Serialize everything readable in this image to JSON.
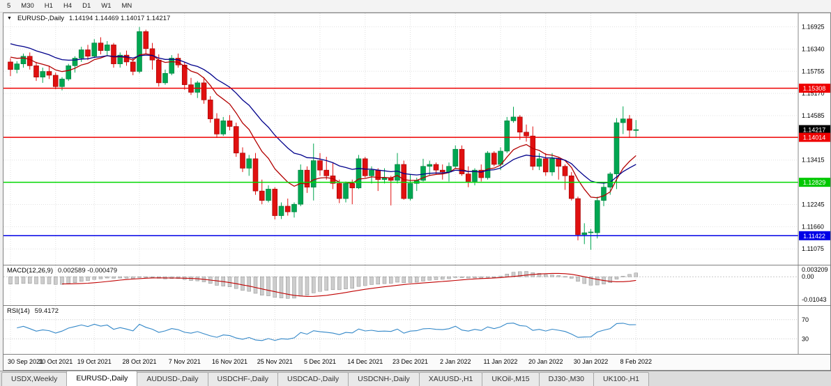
{
  "toolbar": {
    "timeframes": [
      "5",
      "M30",
      "H1",
      "H4",
      "D1",
      "W1",
      "MN"
    ]
  },
  "colors": {
    "bull": "#00a651",
    "bull_edge": "#007a3b",
    "bear": "#e01010",
    "bear_edge": "#9b0000",
    "grid": "#e0e0e0",
    "macd_hist": "#cdcdcd",
    "macd_hist_edge": "#8f8f8f",
    "macd_signal": "#c00000",
    "rsi_line": "#3287c8"
  },
  "chart_data": {
    "type": "candlestick",
    "title": "EURUSD-,Daily",
    "ohlc": "1.14194 1.14469 1.14017 1.14217",
    "x_labels": [
      {
        "text": "30 Sep 2021",
        "i": 0
      },
      {
        "text": "10 Oct 2021",
        "i": 7
      },
      {
        "text": "19 Oct 2021",
        "i": 13
      },
      {
        "text": "28 Oct 2021",
        "i": 20
      },
      {
        "text": "7 Nov 2021",
        "i": 27
      },
      {
        "text": "16 Nov 2021",
        "i": 34
      },
      {
        "text": "25 Nov 2021",
        "i": 41
      },
      {
        "text": "5 Dec 2021",
        "i": 48
      },
      {
        "text": "14 Dec 2021",
        "i": 55
      },
      {
        "text": "23 Dec 2021",
        "i": 62
      },
      {
        "text": "2 Jan 2022",
        "i": 69
      },
      {
        "text": "11 Jan 2022",
        "i": 76
      },
      {
        "text": "20 Jan 2022",
        "i": 83
      },
      {
        "text": "30 Jan 2022",
        "i": 90
      },
      {
        "text": "8 Feb 2022",
        "i": 97
      }
    ],
    "candles": [
      [
        1.16,
        1.161,
        1.1563,
        1.158
      ],
      [
        1.158,
        1.1602,
        1.157,
        1.1595
      ],
      [
        1.1595,
        1.1622,
        1.1585,
        1.1615
      ],
      [
        1.1615,
        1.1625,
        1.158,
        1.159
      ],
      [
        1.159,
        1.16,
        1.155,
        1.156
      ],
      [
        1.156,
        1.1585,
        1.1545,
        1.1575
      ],
      [
        1.1575,
        1.159,
        1.1555,
        1.1565
      ],
      [
        1.1565,
        1.1572,
        1.1528,
        1.1535
      ],
      [
        1.1535,
        1.156,
        1.1525,
        1.1555
      ],
      [
        1.1555,
        1.1595,
        1.155,
        1.159
      ],
      [
        1.159,
        1.1615,
        1.1572,
        1.161
      ],
      [
        1.161,
        1.164,
        1.16,
        1.1632
      ],
      [
        1.1632,
        1.1645,
        1.1605,
        1.1615
      ],
      [
        1.1615,
        1.166,
        1.161,
        1.165
      ],
      [
        1.165,
        1.1665,
        1.162,
        1.163
      ],
      [
        1.163,
        1.1655,
        1.1615,
        1.1645
      ],
      [
        1.1645,
        1.165,
        1.1585,
        1.1595
      ],
      [
        1.1595,
        1.1625,
        1.1585,
        1.1618
      ],
      [
        1.1618,
        1.163,
        1.159,
        1.16
      ],
      [
        1.16,
        1.161,
        1.1565,
        1.1575
      ],
      [
        1.1575,
        1.1692,
        1.157,
        1.168
      ],
      [
        1.168,
        1.1685,
        1.162,
        1.1635
      ],
      [
        1.1635,
        1.165,
        1.158,
        1.1605
      ],
      [
        1.1605,
        1.162,
        1.1535,
        1.1545
      ],
      [
        1.1545,
        1.158,
        1.154,
        1.157
      ],
      [
        1.157,
        1.1618,
        1.1565,
        1.161
      ],
      [
        1.161,
        1.1622,
        1.1585,
        1.1592
      ],
      [
        1.1592,
        1.16,
        1.1527,
        1.154
      ],
      [
        1.154,
        1.1558,
        1.1513,
        1.152
      ],
      [
        1.152,
        1.155,
        1.1505,
        1.1545
      ],
      [
        1.1545,
        1.156,
        1.149,
        1.15
      ],
      [
        1.15,
        1.151,
        1.144,
        1.145
      ],
      [
        1.145,
        1.1465,
        1.14,
        1.141
      ],
      [
        1.141,
        1.1455,
        1.1405,
        1.1445
      ],
      [
        1.1445,
        1.146,
        1.142,
        1.143
      ],
      [
        1.143,
        1.144,
        1.135,
        1.136
      ],
      [
        1.136,
        1.1375,
        1.131,
        1.132
      ],
      [
        1.132,
        1.1355,
        1.13,
        1.1345
      ],
      [
        1.1345,
        1.136,
        1.125,
        1.126
      ],
      [
        1.126,
        1.129,
        1.1225,
        1.1235
      ],
      [
        1.1235,
        1.1275,
        1.123,
        1.1265
      ],
      [
        1.1265,
        1.127,
        1.1185,
        1.1195
      ],
      [
        1.1195,
        1.123,
        1.1186,
        1.122
      ],
      [
        1.122,
        1.124,
        1.1195,
        1.1205
      ],
      [
        1.1205,
        1.123,
        1.119,
        1.1225
      ],
      [
        1.1225,
        1.133,
        1.122,
        1.1315
      ],
      [
        1.1315,
        1.1325,
        1.1255,
        1.127
      ],
      [
        1.127,
        1.1385,
        1.1235,
        1.134
      ],
      [
        1.134,
        1.136,
        1.13,
        1.1315
      ],
      [
        1.1315,
        1.135,
        1.129,
        1.13
      ],
      [
        1.13,
        1.1335,
        1.1265,
        1.128
      ],
      [
        1.128,
        1.129,
        1.1228,
        1.124
      ],
      [
        1.124,
        1.1285,
        1.123,
        1.128
      ],
      [
        1.128,
        1.129,
        1.1225,
        1.1268
      ],
      [
        1.1268,
        1.1355,
        1.1265,
        1.1345
      ],
      [
        1.1345,
        1.135,
        1.1295,
        1.13
      ],
      [
        1.13,
        1.1325,
        1.128,
        1.1315
      ],
      [
        1.1315,
        1.132,
        1.126,
        1.129
      ],
      [
        1.129,
        1.132,
        1.128,
        1.1295
      ],
      [
        1.1295,
        1.13,
        1.1222,
        1.1288
      ],
      [
        1.1288,
        1.136,
        1.128,
        1.133
      ],
      [
        1.133,
        1.134,
        1.1237,
        1.124
      ],
      [
        1.124,
        1.1305,
        1.1235,
        1.128
      ],
      [
        1.128,
        1.1295,
        1.126,
        1.1288
      ],
      [
        1.1288,
        1.1345,
        1.1285,
        1.1325
      ],
      [
        1.1325,
        1.134,
        1.13,
        1.133
      ],
      [
        1.133,
        1.1335,
        1.1305,
        1.1315
      ],
      [
        1.1315,
        1.133,
        1.129,
        1.131
      ],
      [
        1.131,
        1.1335,
        1.1285,
        1.1325
      ],
      [
        1.1325,
        1.138,
        1.132,
        1.137
      ],
      [
        1.137,
        1.138,
        1.13,
        1.1305
      ],
      [
        1.1305,
        1.1325,
        1.127,
        1.1285
      ],
      [
        1.1285,
        1.132,
        1.1275,
        1.1315
      ],
      [
        1.1315,
        1.133,
        1.1285,
        1.1295
      ],
      [
        1.1295,
        1.1365,
        1.129,
        1.136
      ],
      [
        1.136,
        1.1365,
        1.1325,
        1.133
      ],
      [
        1.133,
        1.1375,
        1.1315,
        1.1365
      ],
      [
        1.1365,
        1.1455,
        1.136,
        1.1445
      ],
      [
        1.1445,
        1.1482,
        1.144,
        1.1455
      ],
      [
        1.1455,
        1.146,
        1.1395,
        1.1415
      ],
      [
        1.1415,
        1.1435,
        1.139,
        1.1405
      ],
      [
        1.1405,
        1.143,
        1.1315,
        1.1325
      ],
      [
        1.1325,
        1.136,
        1.1315,
        1.1345
      ],
      [
        1.1345,
        1.136,
        1.13,
        1.131
      ],
      [
        1.131,
        1.136,
        1.13,
        1.1345
      ],
      [
        1.1345,
        1.135,
        1.129,
        1.1325
      ],
      [
        1.1325,
        1.133,
        1.1263,
        1.13
      ],
      [
        1.13,
        1.131,
        1.1235,
        1.124
      ],
      [
        1.124,
        1.1245,
        1.113,
        1.1145
      ],
      [
        1.1145,
        1.1175,
        1.112,
        1.115
      ],
      [
        1.115,
        1.116,
        1.1105,
        1.1152
      ],
      [
        1.115,
        1.1245,
        1.1135,
        1.1235
      ],
      [
        1.1235,
        1.128,
        1.122,
        1.127
      ],
      [
        1.127,
        1.131,
        1.125,
        1.1305
      ],
      [
        1.1305,
        1.1452,
        1.1265,
        1.144
      ],
      [
        1.144,
        1.1483,
        1.141,
        1.145
      ],
      [
        1.145,
        1.146,
        1.14,
        1.142
      ],
      [
        1.14194,
        1.14469,
        1.14017,
        1.14217
      ]
    ],
    "price_axis": {
      "range": [
        1.1095,
        1.171
      ],
      "ticks": [
        {
          "text": "1.16925",
          "value": 1.16925
        },
        {
          "text": "1.16340",
          "value": 1.1634
        },
        {
          "text": "1.15755",
          "value": 1.15755
        },
        {
          "text": "1.15170",
          "value": 1.1517
        },
        {
          "text": "1.14585",
          "value": 1.14585
        },
        {
          "text": "1.13415",
          "value": 1.13415
        },
        {
          "text": "1.12245",
          "value": 1.12245
        },
        {
          "text": "1.11660",
          "value": 1.1166
        },
        {
          "text": "1.11075",
          "value": 1.11075
        }
      ],
      "badges": [
        {
          "text": "1.15308",
          "value": 1.15308,
          "bg": "#ee0000",
          "name": "resistance-price-badge"
        },
        {
          "text": "1.14217",
          "value": 1.14217,
          "bg": "#000000",
          "name": "current-price-badge"
        },
        {
          "text": "1.14014",
          "value": 1.14014,
          "bg": "#ee0000",
          "name": "resistance-price-badge"
        },
        {
          "text": "1.12829",
          "value": 1.12829,
          "bg": "#00c800",
          "name": "support-price-badge"
        },
        {
          "text": "1.11422",
          "value": 1.11422,
          "bg": "#0000e6",
          "name": "support-price-badge"
        }
      ]
    },
    "hlines": [
      {
        "value": 1.15308,
        "color": "#ee0000"
      },
      {
        "value": 1.14014,
        "color": "#ee0000"
      },
      {
        "value": 1.12829,
        "color": "#00d800"
      },
      {
        "value": 1.11422,
        "color": "#0000e6"
      }
    ],
    "moving_averages": [
      {
        "period": 10,
        "color": "#b30000",
        "seed": 1.162
      },
      {
        "period": 21,
        "color": "#00008b",
        "seed": 1.1655
      }
    ],
    "macd": {
      "label": "MACD(12,26,9)",
      "values": "0.002589 -0.000479",
      "fast": 12,
      "slow": 26,
      "signal": 9,
      "seed_fast": 1.1628,
      "seed_slow": 1.166,
      "axis_labels": [
        {
          "text": "0.003209",
          "value": 0.003209
        },
        {
          "text": "0.00",
          "value": 0
        },
        {
          "text": "-0.01043",
          "value": -0.01043
        }
      ]
    },
    "rsi": {
      "label": "RSI(14)",
      "value": "59.4172",
      "period": 14,
      "levels": [
        70,
        30
      ],
      "axis_labels": [
        {
          "text": "70",
          "value": 70
        },
        {
          "text": "30",
          "value": 30
        }
      ]
    }
  },
  "tabs": [
    {
      "label": "USDX,Weekly",
      "active": false
    },
    {
      "label": "EURUSD-,Daily",
      "active": true
    },
    {
      "label": "AUDUSD-,Daily",
      "active": false
    },
    {
      "label": "USDCHF-,Daily",
      "active": false
    },
    {
      "label": "USDCAD-,Daily",
      "active": false
    },
    {
      "label": "USDCNH-,Daily",
      "active": false
    },
    {
      "label": "XAUUSD-,H1",
      "active": false
    },
    {
      "label": "UKOil-,M15",
      "active": false
    },
    {
      "label": "DJ30-,M30",
      "active": false
    },
    {
      "label": "UK100-,H1",
      "active": false
    }
  ]
}
